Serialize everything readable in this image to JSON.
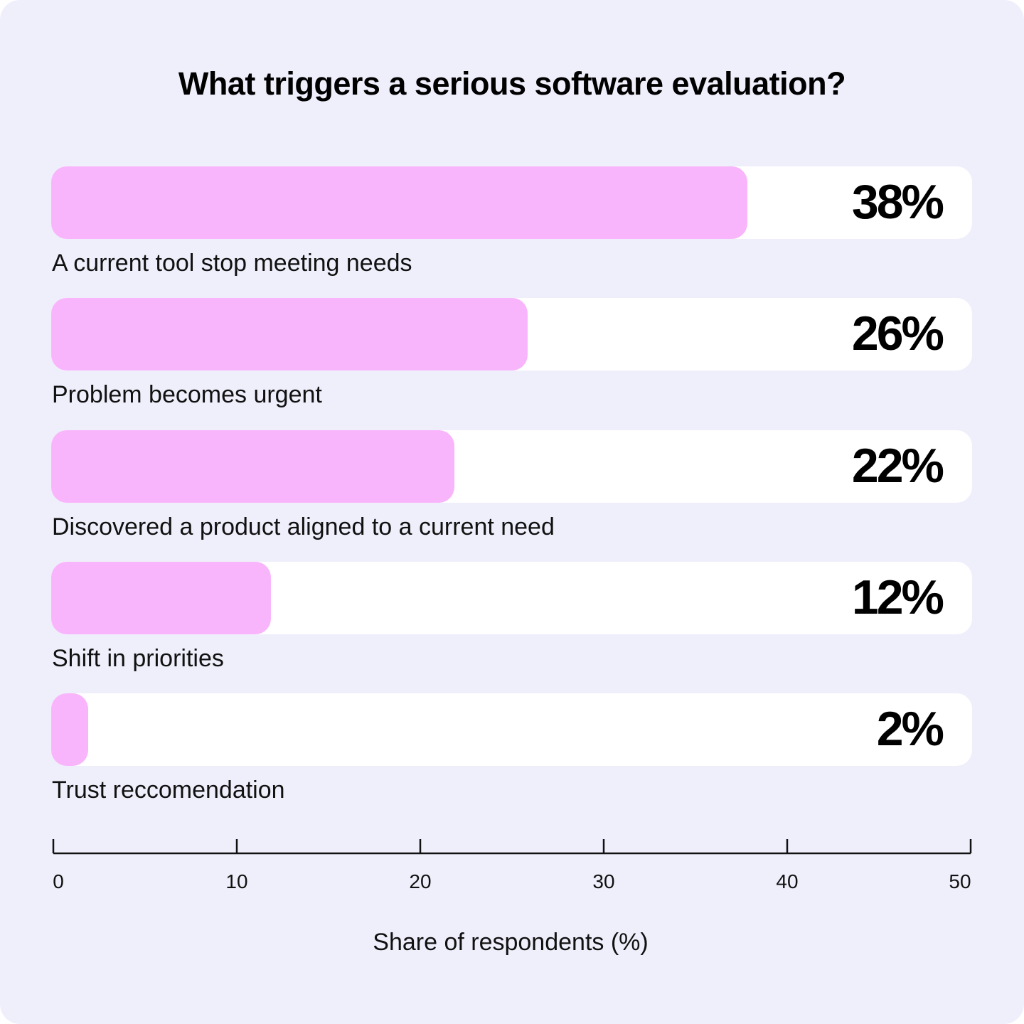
{
  "chart_data": {
    "type": "bar",
    "orientation": "horizontal",
    "title": "What triggers a serious software evaluation?",
    "xlabel": "Share of respondents (%)",
    "ylabel": "",
    "xlim": [
      0,
      50
    ],
    "xticks": [
      "0",
      "10",
      "20",
      "30",
      "40",
      "50"
    ],
    "grid": false,
    "categories": [
      "A current tool stop meeting needs",
      "Problem becomes urgent",
      "Discovered a product aligned to a current need",
      "Shift in priorities",
      "Trust reccomendation"
    ],
    "values": [
      38,
      26,
      22,
      12,
      2
    ],
    "data_labels": [
      "38%",
      "26%",
      "22%",
      "12%",
      "2%"
    ],
    "colors": {
      "bar": "#f9b5fb",
      "track": "#ffffff",
      "background": "#efeffc"
    }
  }
}
